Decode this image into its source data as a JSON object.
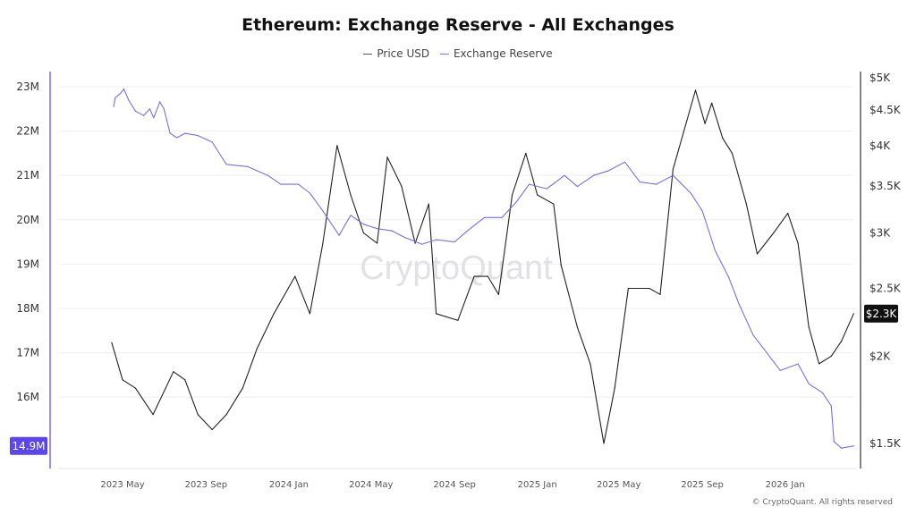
{
  "chart_data": {
    "type": "line",
    "title": "Ethereum: Exchange Reserve - All Exchanges",
    "legend": [
      "Price USD",
      "Exchange Reserve"
    ],
    "legend_placement": "top-center",
    "grid": true,
    "watermark": "CryptoQuant",
    "footer": "© CryptoQuant. All rights reserved",
    "x_ticks": [
      "2023 May",
      "2023 Sep",
      "2024 Jan",
      "2024 May",
      "2024 Sep",
      "2025 Jan",
      "2025 May",
      "2025 Sep",
      "2026 Jan"
    ],
    "x_tick_dates": [
      "2023-05-01",
      "2023-09-01",
      "2024-01-01",
      "2024-05-01",
      "2024-09-01",
      "2025-01-01",
      "2025-05-01",
      "2025-09-01",
      "2026-01-01"
    ],
    "left_axis": {
      "ticks": [
        "23M",
        "22M",
        "21M",
        "20M",
        "19M",
        "18M",
        "17M",
        "16M"
      ],
      "tick_values": [
        23,
        22,
        21,
        20,
        19,
        18,
        17,
        16
      ],
      "range": [
        14.6,
        23.3
      ],
      "unit": "M",
      "current_label": "14.9M",
      "color": "#5b45f0"
    },
    "right_axis": {
      "scale": "log",
      "ticks": [
        "$5K",
        "$4.5K",
        "$4K",
        "$3.5K",
        "$3K",
        "$2.5K",
        "$2K",
        "$1.5K"
      ],
      "tick_values": [
        5000,
        4500,
        4000,
        3500,
        3000,
        2500,
        2000,
        1500
      ],
      "current_label": "$2.3K",
      "color": "#111111"
    },
    "series": [
      {
        "name": "Price USD",
        "axis": "right",
        "color": "#222222",
        "x": [
          "2023-04-15",
          "2023-05-01",
          "2023-05-20",
          "2023-06-15",
          "2023-07-15",
          "2023-08-01",
          "2023-08-20",
          "2023-09-10",
          "2023-10-01",
          "2023-10-25",
          "2023-11-15",
          "2023-12-10",
          "2024-01-10",
          "2024-02-01",
          "2024-02-20",
          "2024-03-12",
          "2024-04-01",
          "2024-04-20",
          "2024-05-10",
          "2024-05-25",
          "2024-06-15",
          "2024-07-05",
          "2024-07-25",
          "2024-08-05",
          "2024-09-06",
          "2024-09-30",
          "2024-10-20",
          "2024-11-05",
          "2024-11-25",
          "2024-12-15",
          "2025-01-01",
          "2025-01-25",
          "2025-02-05",
          "2025-03-01",
          "2025-03-20",
          "2025-04-09",
          "2025-04-25",
          "2025-05-15",
          "2025-06-15",
          "2025-07-01",
          "2025-07-20",
          "2025-08-22",
          "2025-09-05",
          "2025-09-15",
          "2025-10-01",
          "2025-10-15",
          "2025-11-05",
          "2025-11-21",
          "2025-12-15",
          "2026-01-05",
          "2026-01-20",
          "2026-02-05",
          "2026-02-20",
          "2026-03-10",
          "2026-03-25",
          "2026-04-12"
        ],
        "values": [
          2090,
          1850,
          1800,
          1650,
          1900,
          1850,
          1650,
          1570,
          1650,
          1800,
          2050,
          2300,
          2600,
          2300,
          2900,
          4000,
          3400,
          3000,
          2900,
          3850,
          3500,
          2900,
          3300,
          2300,
          2250,
          2600,
          2600,
          2450,
          3400,
          3900,
          3400,
          3300,
          2700,
          2200,
          1950,
          1500,
          1800,
          2500,
          2500,
          2450,
          3700,
          4800,
          4300,
          4600,
          4100,
          3900,
          3300,
          2800,
          3000,
          3200,
          2900,
          2200,
          1950,
          2000,
          2100,
          2300
        ]
      },
      {
        "name": "Exchange Reserve",
        "axis": "left",
        "color": "#7b6ee6",
        "x": [
          "2023-04-18",
          "2023-04-20",
          "2023-04-28",
          "2023-05-03",
          "2023-05-10",
          "2023-05-20",
          "2023-06-01",
          "2023-06-10",
          "2023-06-16",
          "2023-06-25",
          "2023-07-01",
          "2023-07-10",
          "2023-07-20",
          "2023-08-01",
          "2023-08-20",
          "2023-09-10",
          "2023-10-01",
          "2023-11-01",
          "2023-12-01",
          "2023-12-20",
          "2024-01-15",
          "2024-02-01",
          "2024-02-20",
          "2024-03-15",
          "2024-04-01",
          "2024-04-20",
          "2024-05-10",
          "2024-06-01",
          "2024-06-20",
          "2024-07-15",
          "2024-08-05",
          "2024-09-01",
          "2024-09-20",
          "2024-10-15",
          "2024-11-10",
          "2024-12-01",
          "2024-12-20",
          "2025-01-15",
          "2025-02-10",
          "2025-03-01",
          "2025-03-25",
          "2025-04-15",
          "2025-05-10",
          "2025-06-01",
          "2025-06-25",
          "2025-07-20",
          "2025-08-15",
          "2025-09-01",
          "2025-09-20",
          "2025-10-10",
          "2025-10-25",
          "2025-11-15",
          "2025-12-05",
          "2025-12-25",
          "2026-01-20",
          "2026-02-05",
          "2026-02-25",
          "2026-03-10",
          "2026-03-14",
          "2026-03-25",
          "2026-04-12"
        ],
        "values": [
          22.55,
          22.75,
          22.85,
          22.95,
          22.7,
          22.45,
          22.35,
          22.5,
          22.3,
          22.66,
          22.5,
          21.95,
          21.85,
          21.95,
          21.9,
          21.75,
          21.25,
          21.2,
          21.0,
          20.8,
          20.8,
          20.6,
          20.2,
          19.65,
          20.1,
          19.9,
          19.8,
          19.75,
          19.6,
          19.45,
          19.55,
          19.5,
          19.75,
          20.05,
          20.05,
          20.4,
          20.8,
          20.7,
          21.0,
          20.75,
          21.0,
          21.1,
          21.3,
          20.85,
          20.8,
          21.0,
          20.6,
          20.2,
          19.3,
          18.7,
          18.1,
          17.4,
          17.0,
          16.6,
          16.75,
          16.3,
          16.1,
          15.8,
          15.0,
          14.85,
          14.9
        ]
      }
    ]
  }
}
